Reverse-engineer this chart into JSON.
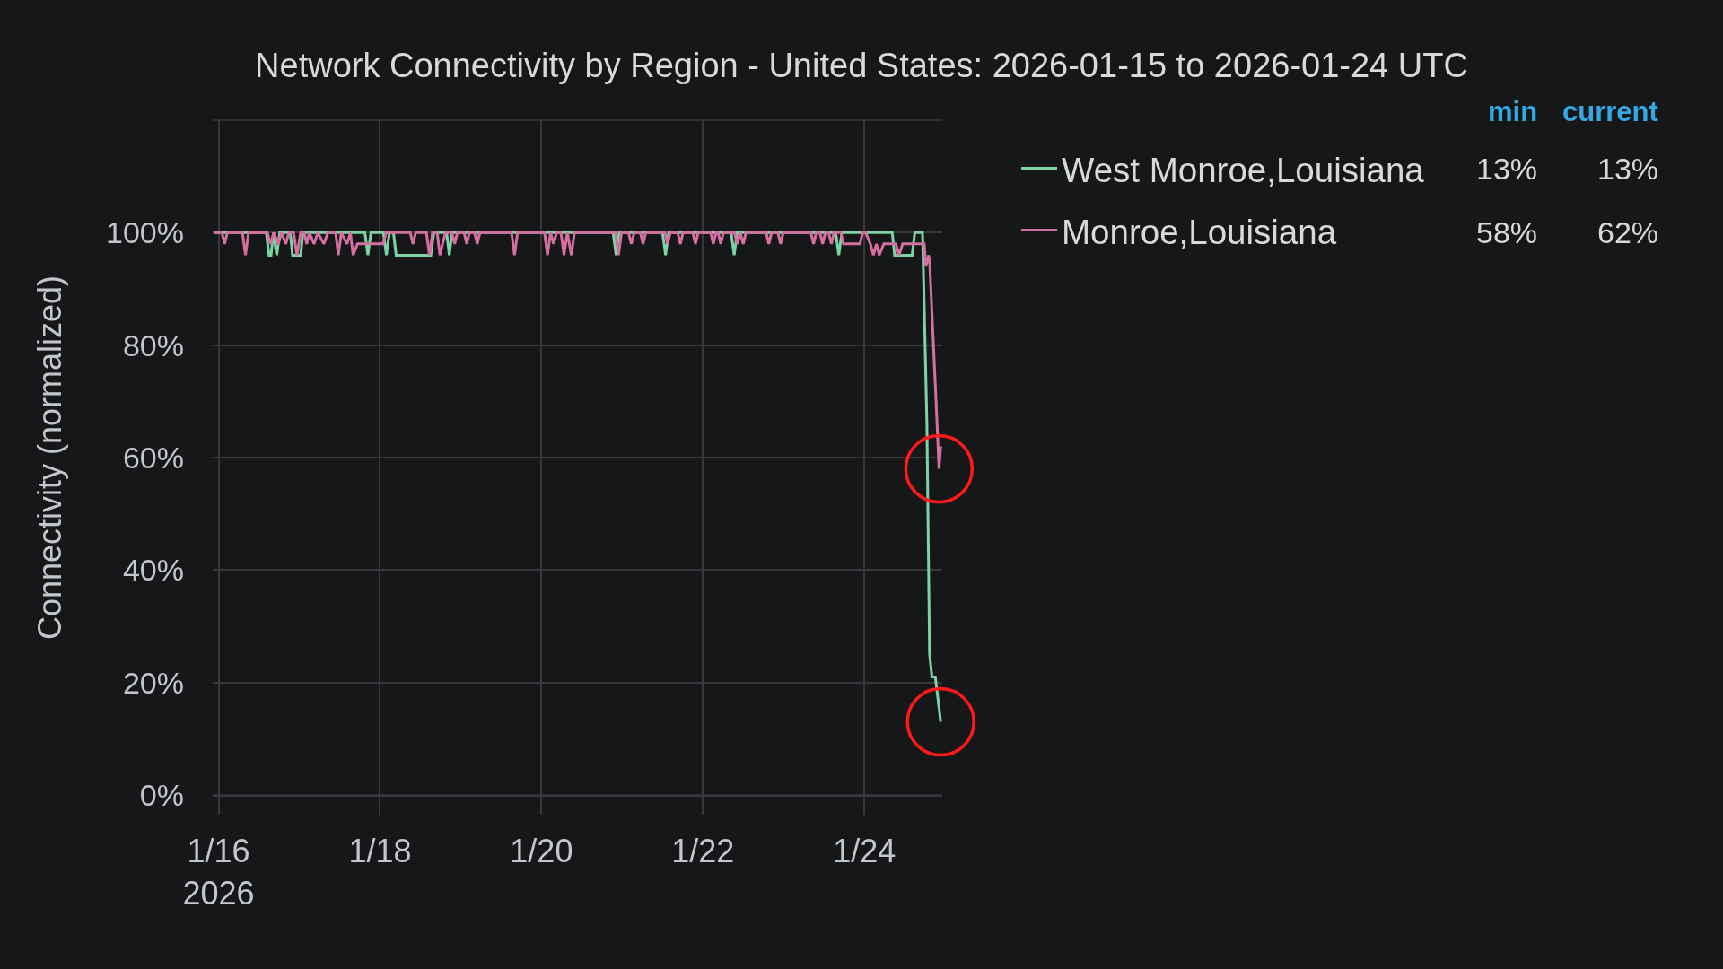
{
  "chart_data": {
    "type": "line",
    "title": "Network Connectivity by Region - United States: 2026-01-15 to 2026-01-24 UTC",
    "ylabel": "Connectivity (normalized)",
    "xlim": [
      "2026-01-15T22:15",
      "2026-01-24T23:10"
    ],
    "xticks": [
      {
        "value": "2026-01-16",
        "label": "1/16\n2026"
      },
      {
        "value": "2026-01-18",
        "label": "1/18"
      },
      {
        "value": "2026-01-20",
        "label": "1/20"
      },
      {
        "value": "2026-01-22",
        "label": "1/22"
      },
      {
        "value": "2026-01-24",
        "label": "1/24"
      }
    ],
    "ylim": [
      0,
      120
    ],
    "yticks": [
      {
        "value": 0,
        "label": "0%"
      },
      {
        "value": 20,
        "label": "20%"
      },
      {
        "value": 40,
        "label": "40%"
      },
      {
        "value": 60,
        "label": "60%"
      },
      {
        "value": 80,
        "label": "80%"
      },
      {
        "value": 100,
        "label": "100%"
      },
      {
        "value": 120,
        "label": null
      }
    ],
    "grid": true,
    "legend": "right",
    "annotations": [
      "min",
      "current",
      "13%",
      "13%",
      "58%",
      "62%"
    ],
    "series": [
      {
        "name": "West Monroe,Louisiana",
        "color": "#7ed3a4",
        "x": [
          "2026-01-15T22:30",
          "2026-01-16T14:12",
          "2026-01-16T15:00",
          "2026-01-16T15:36",
          "2026-01-16T16:18",
          "2026-01-16T17:18",
          "2026-01-16T18:12",
          "2026-01-16T21:18",
          "2026-01-16T22:00",
          "2026-01-17T00:24",
          "2026-01-17T01:06",
          "2026-01-17T19:30",
          "2026-01-17T20:24",
          "2026-01-17T21:18",
          "2026-01-18T01:00",
          "2026-01-18T01:54",
          "2026-01-18T02:48",
          "2026-01-18T04:00",
          "2026-01-18T04:48",
          "2026-01-18T15:06",
          "2026-01-18T16:00",
          "2026-01-18T19:48",
          "2026-01-18T20:36",
          "2026-01-18T21:24",
          "2026-01-20T21:18",
          "2026-01-20T22:12",
          "2026-01-20T23:06",
          "2026-01-21T12:00",
          "2026-01-21T12:54",
          "2026-01-21T13:48",
          "2026-01-22T08:24",
          "2026-01-22T09:18",
          "2026-01-22T10:12",
          "2026-01-23T15:30",
          "2026-01-23T16:24",
          "2026-01-23T17:18",
          "2026-01-24T08:18",
          "2026-01-24T09:00",
          "2026-01-24T14:12",
          "2026-01-24T15:00",
          "2026-01-24T17:18",
          "2026-01-24T18:36",
          "2026-01-24T19:24",
          "2026-01-24T20:06",
          "2026-01-24T21:06",
          "2026-01-24T22:42"
        ],
        "values": [
          100,
          100,
          96,
          96,
          100,
          96,
          100,
          100,
          96,
          96,
          100,
          100,
          96,
          100,
          100,
          96,
          100,
          100,
          96,
          96,
          100,
          100,
          96,
          100,
          100,
          96,
          100,
          100,
          96,
          100,
          100,
          96,
          100,
          100,
          96,
          100,
          100,
          96,
          96,
          100,
          100,
          66,
          25,
          21,
          21,
          13
        ]
      },
      {
        "name": "Monroe,Louisiana",
        "color": "#d46fa0",
        "x": [
          "2026-01-15T22:30",
          "2026-01-16T01:00",
          "2026-01-16T01:48",
          "2026-01-16T02:36",
          "2026-01-16T07:06",
          "2026-01-16T08:00",
          "2026-01-16T08:54",
          "2026-01-16T14:30",
          "2026-01-16T15:30",
          "2026-01-16T16:24",
          "2026-01-16T17:48",
          "2026-01-16T18:42",
          "2026-01-16T20:00",
          "2026-01-16T20:54",
          "2026-01-16T22:18",
          "2026-01-16T23:18",
          "2026-01-17T00:24",
          "2026-01-17T01:30",
          "2026-01-17T02:12",
          "2026-01-17T03:00",
          "2026-01-17T04:24",
          "2026-01-17T05:30",
          "2026-01-17T07:18",
          "2026-01-17T08:30",
          "2026-01-17T10:48",
          "2026-01-17T11:36",
          "2026-01-17T12:30",
          "2026-01-17T14:12",
          "2026-01-17T15:12",
          "2026-01-17T16:00",
          "2026-01-17T17:18",
          "2026-01-18T00:54",
          "2026-01-18T01:48",
          "2026-01-18T09:00",
          "2026-01-18T09:48",
          "2026-01-18T10:36",
          "2026-01-18T13:48",
          "2026-01-18T14:42",
          "2026-01-18T15:36",
          "2026-01-18T17:00",
          "2026-01-18T17:48",
          "2026-01-18T18:36",
          "2026-01-18T19:30",
          "2026-01-18T21:24",
          "2026-01-18T22:12",
          "2026-01-18T23:00",
          "2026-01-19T01:00",
          "2026-01-19T01:48",
          "2026-01-19T02:36",
          "2026-01-19T04:06",
          "2026-01-19T04:54",
          "2026-01-19T05:42",
          "2026-01-19T15:06",
          "2026-01-19T16:00",
          "2026-01-19T16:54",
          "2026-01-20T00:54",
          "2026-01-20T01:48",
          "2026-01-20T02:42",
          "2026-01-20T03:36",
          "2026-01-20T04:30",
          "2026-01-20T05:48",
          "2026-01-20T06:42",
          "2026-01-20T07:42",
          "2026-01-20T08:54",
          "2026-01-20T09:48",
          "2026-01-20T22:00",
          "2026-01-20T22:54",
          "2026-01-20T23:48",
          "2026-01-21T01:54",
          "2026-01-21T02:42",
          "2026-01-21T03:36",
          "2026-01-21T05:24",
          "2026-01-21T06:12",
          "2026-01-21T07:00",
          "2026-01-21T12:42",
          "2026-01-21T13:30",
          "2026-01-21T14:18",
          "2026-01-21T16:30",
          "2026-01-21T17:18",
          "2026-01-21T18:06",
          "2026-01-21T21:00",
          "2026-01-21T21:48",
          "2026-01-21T22:36",
          "2026-01-22T02:18",
          "2026-01-22T03:06",
          "2026-01-22T03:54",
          "2026-01-22T04:30",
          "2026-01-22T05:18",
          "2026-01-22T06:06",
          "2026-01-22T09:24",
          "2026-01-22T10:12",
          "2026-01-22T11:06",
          "2026-01-22T12:00",
          "2026-01-22T12:48",
          "2026-01-22T18:48",
          "2026-01-22T19:36",
          "2026-01-22T20:24",
          "2026-01-22T22:18",
          "2026-01-22T23:06",
          "2026-01-22T23:54",
          "2026-01-23T08:06",
          "2026-01-23T08:54",
          "2026-01-23T09:42",
          "2026-01-23T10:48",
          "2026-01-23T11:36",
          "2026-01-23T12:24",
          "2026-01-23T13:24",
          "2026-01-23T14:12",
          "2026-01-23T15:00",
          "2026-01-23T17:00",
          "2026-01-23T17:48",
          "2026-01-23T22:42",
          "2026-01-23T23:30",
          "2026-01-24T00:24",
          "2026-01-24T01:48",
          "2026-01-24T02:42",
          "2026-01-24T03:36",
          "2026-01-24T04:24",
          "2026-01-24T05:48",
          "2026-01-24T09:24",
          "2026-01-24T10:18",
          "2026-01-24T11:24",
          "2026-01-24T17:48",
          "2026-01-24T18:18",
          "2026-01-24T19:06",
          "2026-01-24T19:24",
          "2026-01-24T21:24",
          "2026-01-24T22:12",
          "2026-01-24T22:42"
        ],
        "values": [
          100,
          100,
          98,
          100,
          100,
          96,
          100,
          100,
          98,
          100,
          98,
          100,
          98,
          100,
          100,
          96,
          100,
          100,
          98,
          100,
          98,
          100,
          98,
          100,
          100,
          96,
          100,
          98,
          100,
          96,
          98,
          98,
          100,
          100,
          98,
          100,
          100,
          96,
          100,
          100,
          96,
          98,
          100,
          100,
          98,
          100,
          100,
          98,
          100,
          100,
          98,
          100,
          100,
          96,
          100,
          100,
          96,
          100,
          98,
          100,
          100,
          96,
          100,
          96,
          100,
          100,
          96,
          100,
          100,
          98,
          100,
          100,
          98,
          100,
          100,
          98,
          100,
          100,
          98,
          100,
          100,
          98,
          100,
          100,
          98,
          100,
          100,
          98,
          100,
          100,
          98,
          100,
          98,
          100,
          100,
          98,
          100,
          100,
          98,
          100,
          100,
          98,
          100,
          100,
          98,
          100,
          100,
          98,
          100,
          100,
          98,
          98,
          100,
          100,
          98,
          96,
          98,
          96,
          98,
          98,
          96,
          98,
          98,
          94,
          96,
          95,
          69,
          58,
          62
        ]
      }
    ]
  }
}
